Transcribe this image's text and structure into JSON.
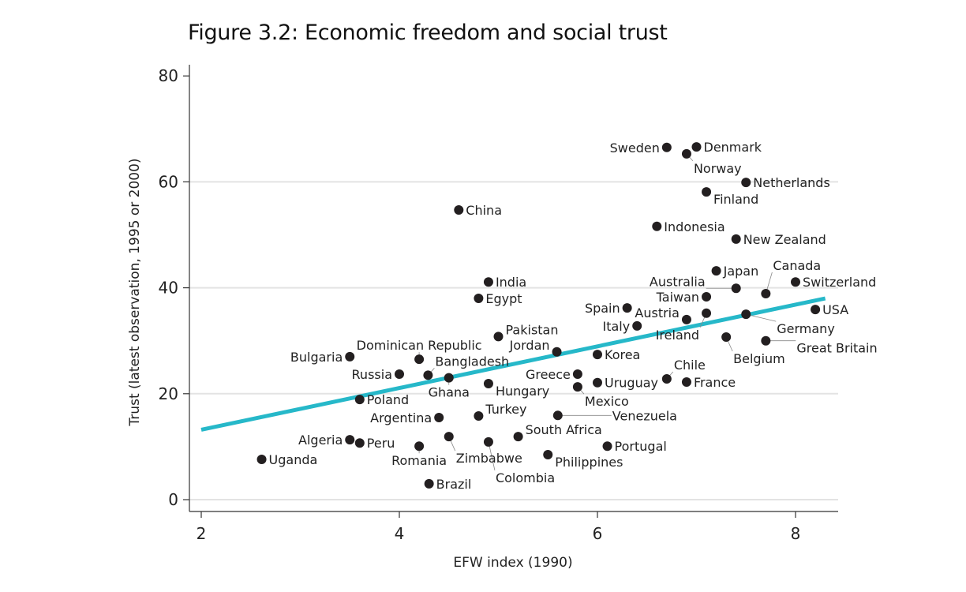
{
  "title": "Figure 3.2: Economic freedom and social trust",
  "chart_data": {
    "type": "scatter",
    "title": "Figure 3.2: Economic freedom and social trust",
    "xlabel": "EFW index (1990)",
    "ylabel": "Trust (latest observation, 1995 or 2000)",
    "xlim": [
      1.9,
      8.4
    ],
    "ylim": [
      -2,
      82
    ],
    "xticks": [
      2,
      4,
      6,
      8
    ],
    "yticks": [
      0,
      20,
      40,
      60,
      80
    ],
    "grid": "horizontal",
    "marker_color": "#231f20",
    "fit_line_color": "#26b8c9",
    "fit_line": {
      "x": [
        2,
        8.3
      ],
      "y": [
        13.2,
        38.0
      ]
    },
    "points": [
      {
        "label": "Uganda",
        "x": 2.61,
        "y": 7.6
      },
      {
        "label": "Algeria",
        "x": 3.5,
        "y": 11.3
      },
      {
        "label": "Peru",
        "x": 3.6,
        "y": 10.7
      },
      {
        "label": "Bulgaria",
        "x": 3.5,
        "y": 27.0
      },
      {
        "label": "Poland",
        "x": 3.6,
        "y": 18.9
      },
      {
        "label": "Russia",
        "x": 4.0,
        "y": 23.7
      },
      {
        "label": "Bangladesh",
        "x": 4.29,
        "y": 23.5
      },
      {
        "label": "Ghana",
        "x": 4.5,
        "y": 23.0
      },
      {
        "label": "Dominican Republic",
        "x": 4.2,
        "y": 26.5
      },
      {
        "label": "Romania",
        "x": 4.2,
        "y": 10.1
      },
      {
        "label": "Argentina",
        "x": 4.4,
        "y": 15.5
      },
      {
        "label": "Brazil",
        "x": 4.3,
        "y": 3.0
      },
      {
        "label": "Zimbabwe",
        "x": 4.5,
        "y": 11.9
      },
      {
        "label": "Turkey",
        "x": 4.8,
        "y": 15.8
      },
      {
        "label": "Colombia",
        "x": 4.9,
        "y": 10.9
      },
      {
        "label": "South Africa",
        "x": 5.2,
        "y": 11.9
      },
      {
        "label": "Hungary",
        "x": 4.9,
        "y": 21.9
      },
      {
        "label": "China",
        "x": 4.6,
        "y": 54.7
      },
      {
        "label": "India",
        "x": 4.9,
        "y": 41.1
      },
      {
        "label": "Egypt",
        "x": 4.8,
        "y": 38.0
      },
      {
        "label": "Pakistan",
        "x": 5.0,
        "y": 30.8
      },
      {
        "label": "Jordan",
        "x": 5.59,
        "y": 27.9
      },
      {
        "label": "Korea",
        "x": 6.0,
        "y": 27.4
      },
      {
        "label": "Greece",
        "x": 5.8,
        "y": 23.7
      },
      {
        "label": "Mexico",
        "x": 5.8,
        "y": 21.3
      },
      {
        "label": "Uruguay",
        "x": 6.0,
        "y": 22.1
      },
      {
        "label": "Venezuela",
        "x": 5.6,
        "y": 15.9
      },
      {
        "label": "Philippines",
        "x": 5.5,
        "y": 8.5
      },
      {
        "label": "Portugal",
        "x": 6.1,
        "y": 10.1
      },
      {
        "label": "Spain",
        "x": 6.3,
        "y": 36.2
      },
      {
        "label": "Italy",
        "x": 6.4,
        "y": 32.8
      },
      {
        "label": "Chile",
        "x": 6.7,
        "y": 22.8
      },
      {
        "label": "France",
        "x": 6.9,
        "y": 22.2
      },
      {
        "label": "Indonesia",
        "x": 6.6,
        "y": 51.6
      },
      {
        "label": "Sweden",
        "x": 6.7,
        "y": 66.5
      },
      {
        "label": "Denmark",
        "x": 7.0,
        "y": 66.6
      },
      {
        "label": "Norway",
        "x": 6.9,
        "y": 65.3
      },
      {
        "label": "Netherlands",
        "x": 7.5,
        "y": 59.9
      },
      {
        "label": "Finland",
        "x": 7.1,
        "y": 58.1
      },
      {
        "label": "New Zealand",
        "x": 7.4,
        "y": 49.2
      },
      {
        "label": "Japan",
        "x": 7.2,
        "y": 43.2
      },
      {
        "label": "Australia",
        "x": 7.4,
        "y": 39.9
      },
      {
        "label": "Switzerland",
        "x": 8.0,
        "y": 41.1
      },
      {
        "label": "Canada",
        "x": 7.7,
        "y": 38.9
      },
      {
        "label": "Taiwan",
        "x": 7.1,
        "y": 38.3
      },
      {
        "label": "Ireland",
        "x": 7.1,
        "y": 35.2
      },
      {
        "label": "Austria",
        "x": 6.9,
        "y": 34.0
      },
      {
        "label": "Germany",
        "x": 7.5,
        "y": 35.0
      },
      {
        "label": "USA",
        "x": 8.2,
        "y": 35.9
      },
      {
        "label": "Belgium",
        "x": 7.3,
        "y": 30.7
      },
      {
        "label": "Great Britain",
        "x": 7.7,
        "y": 30.0,
        "label_pos": "below"
      }
    ]
  }
}
